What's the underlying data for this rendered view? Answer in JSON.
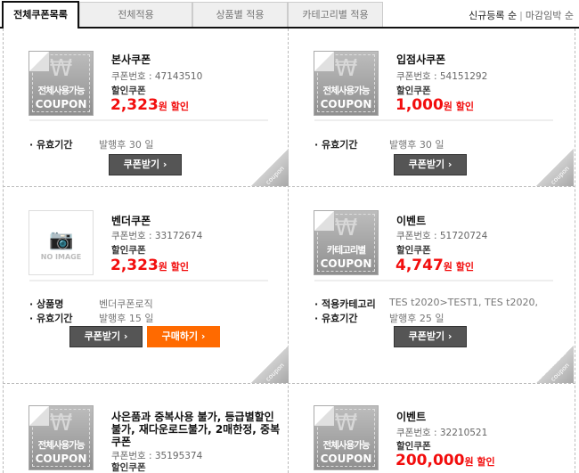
{
  "tabs": [
    {
      "label": "전체쿠폰목록",
      "active": true
    },
    {
      "label": "전체적용"
    },
    {
      "label": "상품별 적용"
    },
    {
      "label": "카테고리별 적용"
    }
  ],
  "sort": {
    "primary": "신규등록 순",
    "separator": "|",
    "secondary": "마감임박 순"
  },
  "colors": {
    "price": "#f20d0d",
    "buy_button": "#ff6a00",
    "get_button": "#555555"
  },
  "coupons": [
    {
      "thumb": "coupon",
      "thumb_label": "전체사용가능",
      "thumb_sub": "COUPON",
      "title": "본사쿠폰",
      "number": "쿠폰번호 : 47143510",
      "discount_label": "할인쿠폰",
      "amount": "2,323",
      "unit": "원 할인",
      "rows": [
        {
          "k": "· 유효기간",
          "v": "발행후 30 일"
        }
      ],
      "buttons": [
        "쿠폰받기 ›"
      ],
      "peel": "coupon"
    },
    {
      "thumb": "coupon",
      "thumb_label": "전체사용가능",
      "thumb_sub": "COUPON",
      "title": "입점사쿠폰",
      "number": "쿠폰번호 : 54151292",
      "discount_label": "할인쿠폰",
      "amount": "1,000",
      "unit": "원 할인",
      "rows": [
        {
          "k": "· 유효기간",
          "v": "발행후 30 일"
        }
      ],
      "buttons": [
        "쿠폰받기 ›"
      ],
      "peel": "coupon"
    },
    {
      "thumb": "noimage",
      "thumb_label": "NO IMAGE",
      "title": "벤더쿠폰",
      "number": "쿠폰번호 : 33172674",
      "discount_label": "할인쿠폰",
      "amount": "2,323",
      "unit": "원 할인",
      "rows": [
        {
          "k": "· 상품명",
          "v": "벤더쿠폰로직"
        },
        {
          "k": "· 유효기간",
          "v": "발행후 15 일"
        }
      ],
      "buttons": [
        "쿠폰받기 ›",
        "구매하기 ›"
      ],
      "peel": "coupon"
    },
    {
      "thumb": "coupon",
      "thumb_label": "카테고리별",
      "thumb_sub": "COUPON",
      "title": "이벤트",
      "number": "쿠폰번호 : 51720724",
      "discount_label": "할인쿠폰",
      "amount": "4,747",
      "unit": "원 할인",
      "rows": [
        {
          "k": "· 적용카테고리",
          "v": "TES t2020>TEST1, TES t2020,"
        },
        {
          "k": "· 유효기간",
          "v": "발행후 25 일"
        }
      ],
      "buttons": [
        "쿠폰받기 ›"
      ],
      "peel": "coupon"
    },
    {
      "thumb": "coupon",
      "thumb_label": "전체사용가능",
      "thumb_sub": "COUPON",
      "title": "사은품과 중복사용 불가, 등급별할인불가, 재다운로드불가, 2매한정, 중복쿠폰",
      "number": "쿠폰번호 : 35195374",
      "discount_label": "할인쿠폰",
      "rows": [],
      "buttons": []
    },
    {
      "thumb": "coupon",
      "thumb_label": "전체사용가능",
      "thumb_sub": "COUPON",
      "title": "이벤트",
      "number": "쿠폰번호 : 32210521",
      "discount_label": "할인쿠폰",
      "amount": "200,000",
      "unit": "원 할인",
      "rows": [],
      "buttons": []
    }
  ]
}
